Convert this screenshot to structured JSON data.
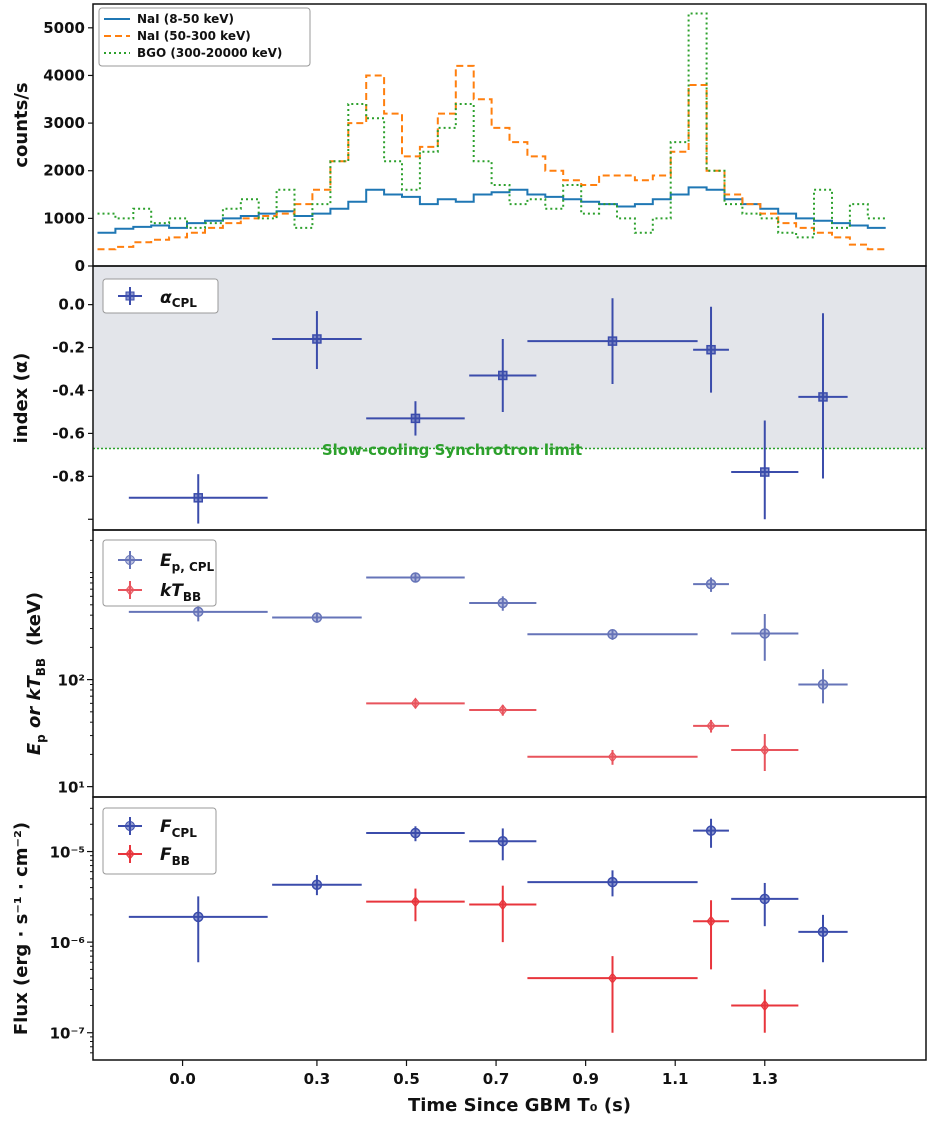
{
  "chart_data": [
    {
      "type": "line",
      "panel": "lightcurve",
      "ylabel": "counts/s",
      "ylim": [
        0,
        5500
      ],
      "yticks": [
        0,
        1000,
        2000,
        3000,
        4000,
        5000
      ],
      "legend": "top-left",
      "series": [
        {
          "name": "NaI (8-50 keV)",
          "color": "#1f77b4",
          "style": "solid",
          "x": [
            -0.17,
            -0.13,
            -0.09,
            -0.05,
            -0.01,
            0.03,
            0.07,
            0.11,
            0.15,
            0.19,
            0.23,
            0.27,
            0.31,
            0.35,
            0.39,
            0.43,
            0.47,
            0.51,
            0.55,
            0.59,
            0.63,
            0.67,
            0.71,
            0.75,
            0.79,
            0.83,
            0.87,
            0.91,
            0.95,
            0.99,
            1.03,
            1.07,
            1.11,
            1.15,
            1.19,
            1.23,
            1.27,
            1.31,
            1.35,
            1.39,
            1.43,
            1.47,
            1.51,
            1.55
          ],
          "y": [
            700,
            780,
            820,
            850,
            800,
            900,
            950,
            1000,
            1050,
            1100,
            1150,
            1050,
            1100,
            1200,
            1350,
            1600,
            1500,
            1450,
            1300,
            1400,
            1350,
            1500,
            1550,
            1600,
            1500,
            1450,
            1400,
            1350,
            1300,
            1250,
            1300,
            1400,
            1500,
            1650,
            1600,
            1400,
            1300,
            1200,
            1100,
            1000,
            950,
            900,
            850,
            800
          ]
        },
        {
          "name": "NaI (50-300 keV)",
          "color": "#ff7f0e",
          "style": "dashed",
          "x": [
            -0.17,
            -0.13,
            -0.09,
            -0.05,
            -0.01,
            0.03,
            0.07,
            0.11,
            0.15,
            0.19,
            0.23,
            0.27,
            0.31,
            0.35,
            0.39,
            0.43,
            0.47,
            0.51,
            0.55,
            0.59,
            0.63,
            0.67,
            0.71,
            0.75,
            0.79,
            0.83,
            0.87,
            0.91,
            0.95,
            0.99,
            1.03,
            1.07,
            1.11,
            1.15,
            1.19,
            1.23,
            1.27,
            1.31,
            1.35,
            1.39,
            1.43,
            1.47,
            1.51,
            1.55
          ],
          "y": [
            350,
            400,
            500,
            550,
            600,
            700,
            800,
            900,
            1000,
            1050,
            1100,
            1300,
            1600,
            2200,
            3000,
            4000,
            3200,
            2300,
            2500,
            3200,
            4200,
            3500,
            2900,
            2600,
            2300,
            2000,
            1800,
            1700,
            1900,
            1900,
            1800,
            1900,
            2400,
            3800,
            2000,
            1500,
            1300,
            1100,
            900,
            800,
            700,
            600,
            450,
            350
          ]
        },
        {
          "name": "BGO (300-20000 keV)",
          "color": "#2ca02c",
          "style": "dotted",
          "x": [
            -0.17,
            -0.13,
            -0.09,
            -0.05,
            -0.01,
            0.03,
            0.07,
            0.11,
            0.15,
            0.19,
            0.23,
            0.27,
            0.31,
            0.35,
            0.39,
            0.43,
            0.47,
            0.51,
            0.55,
            0.59,
            0.63,
            0.67,
            0.71,
            0.75,
            0.79,
            0.83,
            0.87,
            0.91,
            0.95,
            0.99,
            1.03,
            1.07,
            1.11,
            1.15,
            1.19,
            1.23,
            1.27,
            1.31,
            1.35,
            1.39,
            1.43,
            1.47,
            1.51,
            1.55
          ],
          "y": [
            1100,
            1000,
            1200,
            900,
            1000,
            800,
            900,
            1200,
            1400,
            1000,
            1600,
            800,
            1300,
            2200,
            3400,
            3100,
            2200,
            1600,
            2400,
            2900,
            3400,
            2200,
            1700,
            1300,
            1400,
            1200,
            1700,
            1100,
            1300,
            1000,
            700,
            1000,
            2600,
            5300,
            2000,
            1300,
            1100,
            1000,
            700,
            600,
            1600,
            800,
            1300,
            1000
          ]
        }
      ]
    },
    {
      "type": "scatter",
      "panel": "index",
      "ylabel": "index (α)",
      "ylim": [
        -1.05,
        0.18
      ],
      "yticks": [
        0.0,
        -0.2,
        -0.4,
        -0.6,
        -0.8
      ],
      "ytick_labels": [
        "0.0",
        "-0.2",
        "-0.4",
        "-0.6",
        "-0.8"
      ],
      "shaded_region": [
        -0.67,
        0.18
      ],
      "reference_line": {
        "y": -0.67,
        "label": "Slow-cooling Synchrotron limit",
        "color": "#2ca02c"
      },
      "legend": "top-left",
      "series": [
        {
          "name": "α_CPL",
          "label_main": "α",
          "label_sub": "CPL",
          "color": "#3b4cab",
          "marker": "square",
          "points": [
            {
              "x": 0.035,
              "xerr": 0.155,
              "y": -0.9,
              "yerr_lo": 0.12,
              "yerr_hi": 0.11
            },
            {
              "x": 0.3,
              "xerr": 0.1,
              "y": -0.16,
              "yerr_lo": 0.14,
              "yerr_hi": 0.13
            },
            {
              "x": 0.52,
              "xerr": 0.11,
              "y": -0.53,
              "yerr_lo": 0.08,
              "yerr_hi": 0.08
            },
            {
              "x": 0.715,
              "xerr": 0.075,
              "y": -0.33,
              "yerr_lo": 0.17,
              "yerr_hi": 0.17
            },
            {
              "x": 0.96,
              "xerr": 0.19,
              "y": -0.17,
              "yerr_lo": 0.2,
              "yerr_hi": 0.2
            },
            {
              "x": 1.18,
              "xerr": 0.04,
              "y": -0.21,
              "yerr_lo": 0.2,
              "yerr_hi": 0.2
            },
            {
              "x": 1.3,
              "xerr": 0.075,
              "y": -0.78,
              "yerr_lo": 0.22,
              "yerr_hi": 0.24
            },
            {
              "x": 1.43,
              "xerr": 0.055,
              "y": -0.43,
              "yerr_lo": 0.38,
              "yerr_hi": 0.39
            }
          ]
        }
      ]
    },
    {
      "type": "scatter",
      "panel": "energy",
      "ylabel_main": "E",
      "ylabel_sub1": "p",
      "ylabel_or": " or kT",
      "ylabel_sub2": "BB",
      "ylabel_unit": "(keV)",
      "yscale": "log",
      "ylim": [
        8,
        2500
      ],
      "yticks": [
        10,
        100
      ],
      "ytick_labels": [
        "10¹",
        "10²"
      ],
      "legend": "top-left",
      "series": [
        {
          "name": "Ep,CPL",
          "label_main": "E",
          "label_sub": "p, CPL",
          "color": "#6674b8",
          "marker": "circle",
          "points": [
            {
              "x": 0.035,
              "xerr": 0.155,
              "y": 430,
              "yerr_lo": 80,
              "yerr_hi": 90
            },
            {
              "x": 0.3,
              "xerr": 0.1,
              "y": 380,
              "yerr_lo": 40,
              "yerr_hi": 40
            },
            {
              "x": 0.52,
              "xerr": 0.11,
              "y": 900,
              "yerr_lo": 90,
              "yerr_hi": 100
            },
            {
              "x": 0.715,
              "xerr": 0.075,
              "y": 520,
              "yerr_lo": 80,
              "yerr_hi": 80
            },
            {
              "x": 0.96,
              "xerr": 0.19,
              "y": 265,
              "yerr_lo": 30,
              "yerr_hi": 30
            },
            {
              "x": 1.18,
              "xerr": 0.04,
              "y": 780,
              "yerr_lo": 120,
              "yerr_hi": 120
            },
            {
              "x": 1.3,
              "xerr": 0.075,
              "y": 270,
              "yerr_lo": 120,
              "yerr_hi": 140
            },
            {
              "x": 1.43,
              "xerr": 0.055,
              "y": 90,
              "yerr_lo": 30,
              "yerr_hi": 35
            }
          ]
        },
        {
          "name": "kTBB",
          "label_main": "kT",
          "label_sub": "BB",
          "color": "#e8535c",
          "marker": "diamond",
          "points": [
            {
              "x": 0.52,
              "xerr": 0.11,
              "y": 60,
              "yerr_lo": 6,
              "yerr_hi": 6
            },
            {
              "x": 0.715,
              "xerr": 0.075,
              "y": 52,
              "yerr_lo": 6,
              "yerr_hi": 6
            },
            {
              "x": 0.96,
              "xerr": 0.19,
              "y": 19,
              "yerr_lo": 3,
              "yerr_hi": 3
            },
            {
              "x": 1.18,
              "xerr": 0.04,
              "y": 37,
              "yerr_lo": 5,
              "yerr_hi": 5
            },
            {
              "x": 1.3,
              "xerr": 0.075,
              "y": 22,
              "yerr_lo": 8,
              "yerr_hi": 9
            }
          ]
        }
      ]
    },
    {
      "type": "scatter",
      "panel": "flux",
      "ylabel": "Flux (erg · s⁻¹ · cm⁻²)",
      "yscale": "log",
      "ylim": [
        5e-08,
        4e-05
      ],
      "yticks": [
        1e-07,
        1e-06,
        1e-05
      ],
      "ytick_labels": [
        "10⁻⁷",
        "10⁻⁶",
        "10⁻⁵"
      ],
      "xlabel": "Time Since GBM T₀ (s)",
      "xlim": [
        -0.2,
        1.66
      ],
      "xticks": [
        0.0,
        0.3,
        0.5,
        0.7,
        0.9,
        1.1,
        1.3
      ],
      "xtick_labels": [
        "0.0",
        "0.3",
        "0.5",
        "0.7",
        "0.9",
        "1.1",
        "1.3"
      ],
      "legend": "top-left",
      "series": [
        {
          "name": "FCPL",
          "label_main": "F",
          "label_sub": "CPL",
          "color": "#3b4cab",
          "marker": "circle",
          "points": [
            {
              "x": 0.035,
              "xerr": 0.155,
              "y": 1.9e-06,
              "yerr_lo": 1.3e-06,
              "yerr_hi": 1.3e-06
            },
            {
              "x": 0.3,
              "xerr": 0.1,
              "y": 4.3e-06,
              "yerr_lo": 1e-06,
              "yerr_hi": 1.2e-06
            },
            {
              "x": 0.52,
              "xerr": 0.11,
              "y": 1.6e-05,
              "yerr_lo": 3e-06,
              "yerr_hi": 3e-06
            },
            {
              "x": 0.715,
              "xerr": 0.075,
              "y": 1.3e-05,
              "yerr_lo": 5e-06,
              "yerr_hi": 5e-06
            },
            {
              "x": 0.96,
              "xerr": 0.19,
              "y": 4.6e-06,
              "yerr_lo": 1.4e-06,
              "yerr_hi": 1.6e-06
            },
            {
              "x": 1.18,
              "xerr": 0.04,
              "y": 1.7e-05,
              "yerr_lo": 6e-06,
              "yerr_hi": 6e-06
            },
            {
              "x": 1.3,
              "xerr": 0.075,
              "y": 3e-06,
              "yerr_lo": 1.5e-06,
              "yerr_hi": 1.5e-06
            },
            {
              "x": 1.43,
              "xerr": 0.055,
              "y": 1.3e-06,
              "yerr_lo": 7e-07,
              "yerr_hi": 7e-07
            }
          ]
        },
        {
          "name": "FBB",
          "label_main": "F",
          "label_sub": "BB",
          "color": "#e8353c",
          "marker": "diamond",
          "points": [
            {
              "x": 0.52,
              "xerr": 0.11,
              "y": 2.8e-06,
              "yerr_lo": 1.1e-06,
              "yerr_hi": 1.1e-06
            },
            {
              "x": 0.715,
              "xerr": 0.075,
              "y": 2.6e-06,
              "yerr_lo": 1.6e-06,
              "yerr_hi": 1.6e-06
            },
            {
              "x": 0.96,
              "xerr": 0.19,
              "y": 4e-07,
              "yerr_lo": 3e-07,
              "yerr_hi": 3e-07
            },
            {
              "x": 1.18,
              "xerr": 0.04,
              "y": 1.7e-06,
              "yerr_lo": 1.2e-06,
              "yerr_hi": 1.2e-06
            },
            {
              "x": 1.3,
              "xerr": 0.075,
              "y": 2e-07,
              "yerr_lo": 1e-07,
              "yerr_hi": 1e-07
            }
          ]
        }
      ]
    }
  ]
}
